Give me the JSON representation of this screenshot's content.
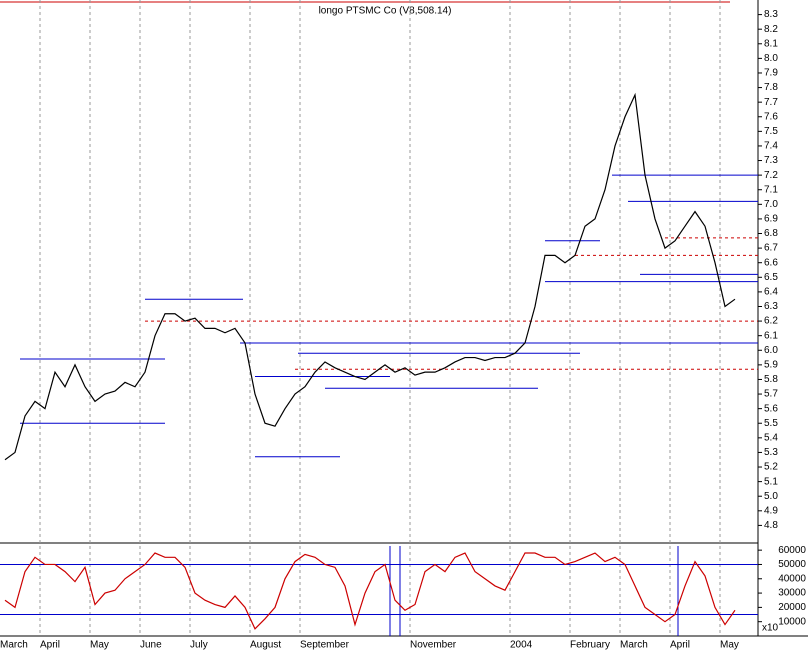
{
  "chart_data": {
    "type": "line",
    "title": "longo PTSMC Co (V8,508.14)",
    "categories": [
      "March",
      null,
      null,
      null,
      "April",
      null,
      null,
      null,
      null,
      "May",
      null,
      null,
      null,
      null,
      "June",
      null,
      null,
      null,
      null,
      "July",
      null,
      null,
      null,
      null,
      null,
      "August",
      null,
      null,
      null,
      null,
      "September",
      null,
      null,
      null,
      null,
      null,
      null,
      null,
      null,
      null,
      null,
      "November",
      null,
      null,
      null,
      null,
      null,
      null,
      null,
      null,
      null,
      "2004",
      null,
      null,
      null,
      null,
      null,
      "February",
      null,
      null,
      null,
      null,
      "March",
      null,
      null,
      null,
      null,
      "April",
      null,
      null,
      null,
      null,
      "May",
      null
    ],
    "series": [
      {
        "color": "#000000",
        "values": [
          5.25,
          5.3,
          5.55,
          5.65,
          5.6,
          5.85,
          5.75,
          5.9,
          5.75,
          5.65,
          5.7,
          5.72,
          5.78,
          5.75,
          5.85,
          6.1,
          6.25,
          6.25,
          6.2,
          6.22,
          6.15,
          6.15,
          6.12,
          6.15,
          6.05,
          5.7,
          5.5,
          5.48,
          5.6,
          5.7,
          5.75,
          5.85,
          5.92,
          5.88,
          5.85,
          5.82,
          5.8,
          5.85,
          5.9,
          5.85,
          5.88,
          5.83,
          5.85,
          5.85,
          5.88,
          5.92,
          5.95,
          5.95,
          5.93,
          5.95,
          5.95,
          5.98,
          6.05,
          6.3,
          6.65,
          6.65,
          6.6,
          6.65,
          6.85,
          6.9,
          7.1,
          7.4,
          7.6,
          7.75,
          7.2,
          6.9,
          6.7,
          6.75,
          6.85,
          6.95,
          6.85,
          6.6,
          6.3,
          6.35
        ]
      },
      {
        "color": "#cc0000",
        "axis": "y2",
        "values": [
          25000,
          20000,
          45000,
          55000,
          50000,
          50000,
          45000,
          38000,
          48000,
          22000,
          30000,
          32000,
          40000,
          45000,
          50000,
          58000,
          55000,
          55000,
          48000,
          30000,
          25000,
          22000,
          20000,
          28000,
          20000,
          5000,
          12000,
          20000,
          40000,
          52000,
          57000,
          55000,
          50000,
          48000,
          35000,
          8000,
          30000,
          45000,
          50000,
          25000,
          18000,
          22000,
          45000,
          50000,
          45000,
          55000,
          58000,
          45000,
          40000,
          35000,
          32000,
          45000,
          58000,
          58000,
          55000,
          55000,
          50000,
          52000,
          55000,
          58000,
          52000,
          55000,
          50000,
          35000,
          20000,
          15000,
          10000,
          15000,
          35000,
          52000,
          42000,
          20000,
          8000,
          18000
        ]
      }
    ],
    "levels": [
      {
        "value": 5.94,
        "from": 1.5,
        "to": 16,
        "color": "#0000cc"
      },
      {
        "value": 5.5,
        "from": 1.5,
        "to": 16,
        "color": "#0000cc"
      },
      {
        "value": 6.35,
        "from": 14,
        "to": 23.8,
        "color": "#0000cc"
      },
      {
        "value": 6.05,
        "from": 23.5,
        "to": 75.3,
        "color": "#0000cc"
      },
      {
        "value": 5.82,
        "from": 25,
        "to": 38.5,
        "color": "#0000cc"
      },
      {
        "value": 5.27,
        "from": 25,
        "to": 33.5,
        "color": "#0000cc"
      },
      {
        "value": 5.98,
        "from": 29.3,
        "to": 57.5,
        "color": "#0000cc"
      },
      {
        "value": 5.74,
        "from": 32,
        "to": 53.3,
        "color": "#0000cc"
      },
      {
        "value": 6.75,
        "from": 54,
        "to": 59.5,
        "color": "#0000cc"
      },
      {
        "value": 6.47,
        "from": 54,
        "to": 75.3,
        "color": "#0000cc"
      },
      {
        "value": 7.2,
        "from": 60.7,
        "to": 75.3,
        "color": "#0000cc"
      },
      {
        "value": 7.02,
        "from": 62.3,
        "to": 75.3,
        "color": "#0000cc"
      },
      {
        "value": 6.52,
        "from": 63.5,
        "to": 75.3,
        "color": "#0000cc"
      },
      {
        "value": 6.2,
        "from": 14,
        "to": 75.3,
        "color": "#cc0000",
        "dashed": true
      },
      {
        "value": 5.87,
        "from": 29,
        "to": 75.3,
        "color": "#cc0000",
        "dashed": true
      },
      {
        "value": 6.65,
        "from": 57,
        "to": 75.3,
        "color": "#cc0000",
        "dashed": true
      },
      {
        "value": 6.77,
        "from": 66,
        "to": 75.3,
        "color": "#cc0000",
        "dashed": true
      }
    ],
    "y2levels": [
      50000,
      15000
    ],
    "ylim": [
      4.7,
      8.4
    ],
    "yticks": [
      4.8,
      4.9,
      {
        "value": 5,
        "label": "5.0"
      },
      5.1,
      5.2,
      5.3,
      5.4,
      5.5,
      5.6,
      5.7,
      5.8,
      5.9,
      {
        "value": 6,
        "label": "6.0"
      },
      6.1,
      6.2,
      6.3,
      6.4,
      6.5,
      6.6,
      6.7,
      6.8,
      6.9,
      {
        "value": 7,
        "label": "7.0"
      },
      7.1,
      7.2,
      7.3,
      7.4,
      7.5,
      7.6,
      7.7,
      7.8,
      7.9,
      {
        "value": 8,
        "label": "8.0"
      },
      8.1,
      8.2,
      8.3
    ],
    "y2lim": [
      0,
      65000
    ],
    "y2ticks": [
      10000,
      20000,
      30000,
      40000,
      50000,
      60000
    ],
    "y2unit": "x10",
    "grid": true
  }
}
